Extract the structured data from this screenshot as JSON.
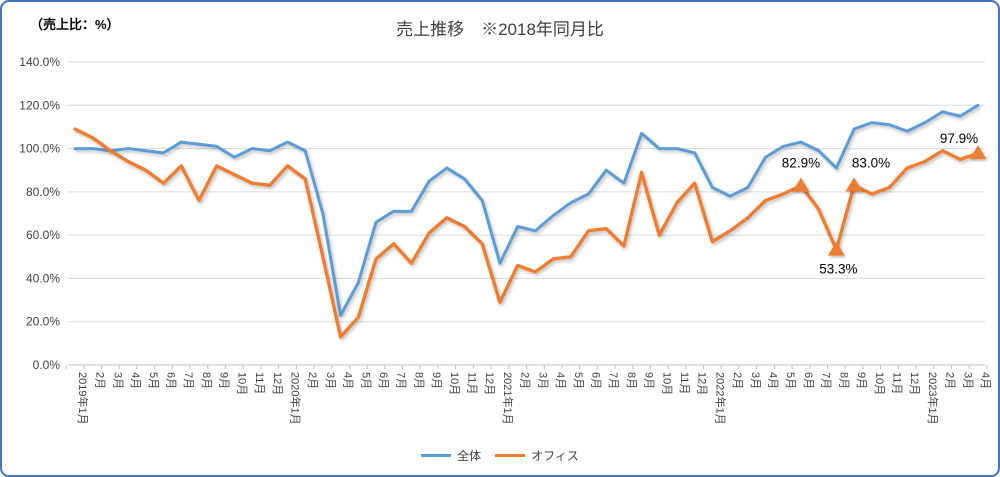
{
  "frame": {
    "units_label": "（売上比：%）",
    "title": "売上推移　※2018年同月比"
  },
  "y_axis": {
    "tick_labels": [
      "140.0%",
      "120.0%",
      "100.0%",
      "80.0%",
      "60.0%",
      "40.0%",
      "20.0%",
      "0.0%"
    ]
  },
  "legend": {
    "items": [
      {
        "label": "全体",
        "color": "#5B9BD5"
      },
      {
        "label": "オフィス",
        "color": "#ED7D31"
      }
    ]
  },
  "chart_data": {
    "type": "line",
    "title": "売上推移　※2018年同月比",
    "xlabel": "",
    "ylabel": "（売上比：%）",
    "ylim": [
      0,
      140
    ],
    "ytick_step": 20,
    "grid": "horizontal",
    "legend_position": "bottom",
    "categories": [
      "2019年1月",
      "2月",
      "3月",
      "4月",
      "5月",
      "6月",
      "7月",
      "8月",
      "9月",
      "10月",
      "11月",
      "12月",
      "2020年1月",
      "2月",
      "3月",
      "4月",
      "5月",
      "6月",
      "7月",
      "8月",
      "9月",
      "10月",
      "11月",
      "12月",
      "2021年1月",
      "2月",
      "3月",
      "4月",
      "5月",
      "6月",
      "7月",
      "8月",
      "9月",
      "10月",
      "11月",
      "12月",
      "2022年1月",
      "2月",
      "3月",
      "4月",
      "5月",
      "6月",
      "7月",
      "8月",
      "9月",
      "10月",
      "11月",
      "12月",
      "2023年1月",
      "2月",
      "3月",
      "4月"
    ],
    "series": [
      {
        "name": "全体",
        "color": "#5B9BD5",
        "values": [
          100,
          100,
          99,
          100,
          99,
          98,
          103,
          102,
          101,
          96,
          100,
          99,
          103,
          99,
          70,
          23,
          38,
          66,
          71,
          71,
          85,
          91,
          86,
          76,
          47,
          64,
          62,
          69,
          75,
          79,
          90,
          84,
          107,
          100,
          100,
          98,
          82,
          78,
          82,
          96,
          101,
          103,
          99,
          91,
          109,
          112,
          111,
          108,
          112,
          117,
          115,
          120
        ]
      },
      {
        "name": "オフィス",
        "color": "#ED7D31",
        "values": [
          109,
          105,
          99,
          94,
          90,
          84,
          92,
          76,
          92,
          88,
          84,
          83,
          92,
          86,
          50,
          13,
          22,
          49,
          56,
          47,
          61,
          68,
          64,
          56,
          29,
          46,
          43,
          49,
          50,
          62,
          63,
          55,
          89,
          60,
          75,
          84,
          57,
          62,
          68,
          76,
          79,
          82.9,
          72,
          53.3,
          83,
          79,
          82,
          91,
          94,
          99,
          95,
          97.9
        ],
        "annotations": [
          {
            "index": 41,
            "label": "82.9%",
            "placement": "above"
          },
          {
            "index": 43,
            "label": "53.3%",
            "placement": "below"
          },
          {
            "index": 44,
            "label": "83.0%",
            "placement": "above-right"
          },
          {
            "index": 51,
            "label": "97.9%",
            "placement": "above-left"
          }
        ]
      }
    ]
  }
}
